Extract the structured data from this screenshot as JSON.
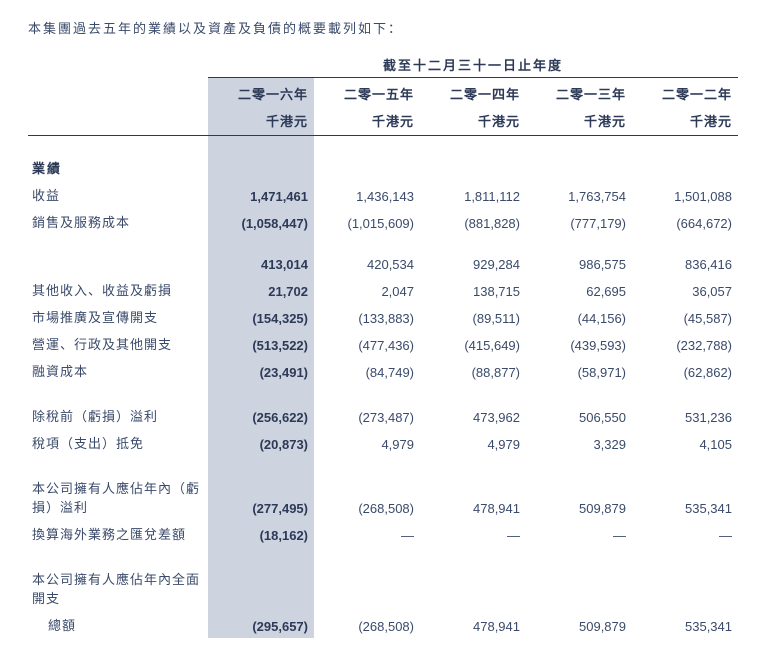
{
  "intro": "本集團過去五年的業績以及資產及負債的概要載列如下：",
  "header": {
    "title": "截至十二月三十一日止年度",
    "years": [
      "二零一六年",
      "二零一五年",
      "二零一四年",
      "二零一三年",
      "二零一二年"
    ],
    "unit": "千港元"
  },
  "sections": {
    "results_label": "業績",
    "rows": [
      {
        "label": "收益",
        "v": [
          "1,471,461",
          "1,436,143",
          "1,811,112",
          "1,763,754",
          "1,501,088"
        ]
      },
      {
        "label": "銷售及服務成本",
        "v": [
          "(1,058,447)",
          "(1,015,609)",
          "(881,828)",
          "(777,179)",
          "(664,672)"
        ]
      }
    ],
    "subtotal1": {
      "label": "",
      "v": [
        "413,014",
        "420,534",
        "929,284",
        "986,575",
        "836,416"
      ]
    },
    "rows2": [
      {
        "label": "其他收入、收益及虧損",
        "v": [
          "21,702",
          "2,047",
          "138,715",
          "62,695",
          "36,057"
        ]
      },
      {
        "label": "市場推廣及宣傳開支",
        "v": [
          "(154,325)",
          "(133,883)",
          "(89,511)",
          "(44,156)",
          "(45,587)"
        ]
      },
      {
        "label": "營運、行政及其他開支",
        "v": [
          "(513,522)",
          "(477,436)",
          "(415,649)",
          "(439,593)",
          "(232,788)"
        ]
      },
      {
        "label": "融資成本",
        "v": [
          "(23,491)",
          "(84,749)",
          "(88,877)",
          "(58,971)",
          "(62,862)"
        ]
      }
    ],
    "rows3": [
      {
        "label": "除稅前（虧損）溢利",
        "v": [
          "(256,622)",
          "(273,487)",
          "473,962",
          "506,550",
          "531,236"
        ]
      },
      {
        "label": "稅項（支出）抵免",
        "v": [
          "(20,873)",
          "4,979",
          "4,979",
          "3,329",
          "4,105"
        ]
      }
    ],
    "rows4": [
      {
        "label": "本公司擁有人應佔年內（虧損）溢利",
        "v": [
          "(277,495)",
          "(268,508)",
          "478,941",
          "509,879",
          "535,341"
        ]
      },
      {
        "label": "換算海外業務之匯兌差額",
        "v": [
          "(18,162)",
          "—",
          "—",
          "—",
          "—"
        ]
      }
    ],
    "total_label1": "本公司擁有人應佔年內全面開支",
    "total_label2": "總額",
    "total_values": [
      "(295,657)",
      "(268,508)",
      "478,941",
      "509,879",
      "535,341"
    ]
  },
  "style": {
    "text_color": "#3a4a6a",
    "bold_color": "#2c3a58",
    "highlight_bg": "#cdd4df",
    "border_color": "#2c3a58",
    "font_size_base": 13
  }
}
